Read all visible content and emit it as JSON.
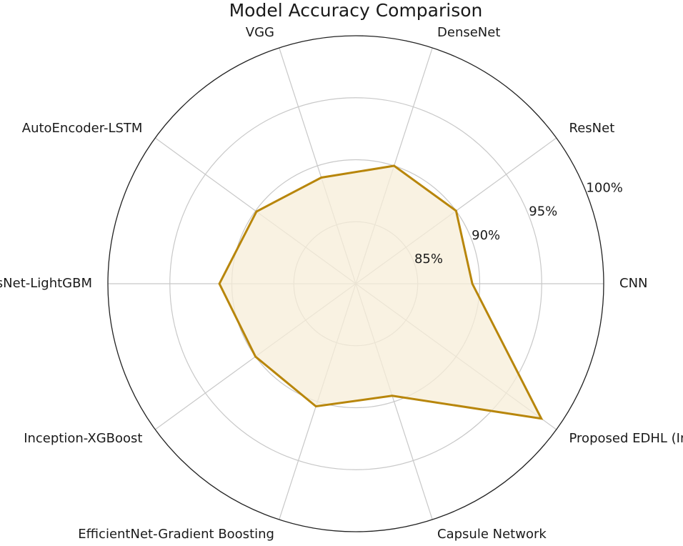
{
  "chart_data": {
    "type": "radar",
    "title": "Model Accuracy Comparison",
    "categories": [
      "CNN",
      "ResNet",
      "DenseNet",
      "VGG",
      "AutoEncoder-LSTM",
      "Hybrid ResNet-LightGBM",
      "Inception-XGBoost",
      "EfficientNet-Gradient Boosting",
      "Capsule Network",
      "Proposed EDHL (Inception-GB)"
    ],
    "values": [
      89.4,
      90.0,
      90.0,
      89.0,
      89.9,
      91.0,
      90.0,
      90.4,
      89.5,
      98.5
    ],
    "r_range": [
      80,
      100
    ],
    "r_ticks": [
      85,
      90,
      95,
      100
    ],
    "r_tick_labels": [
      "85%",
      "90%",
      "95%",
      "100%"
    ],
    "grid": true,
    "colors": {
      "line": "#b8860b",
      "fill": "#f7edd8",
      "grid": "#c8c8c8",
      "outer": "#222222"
    }
  }
}
